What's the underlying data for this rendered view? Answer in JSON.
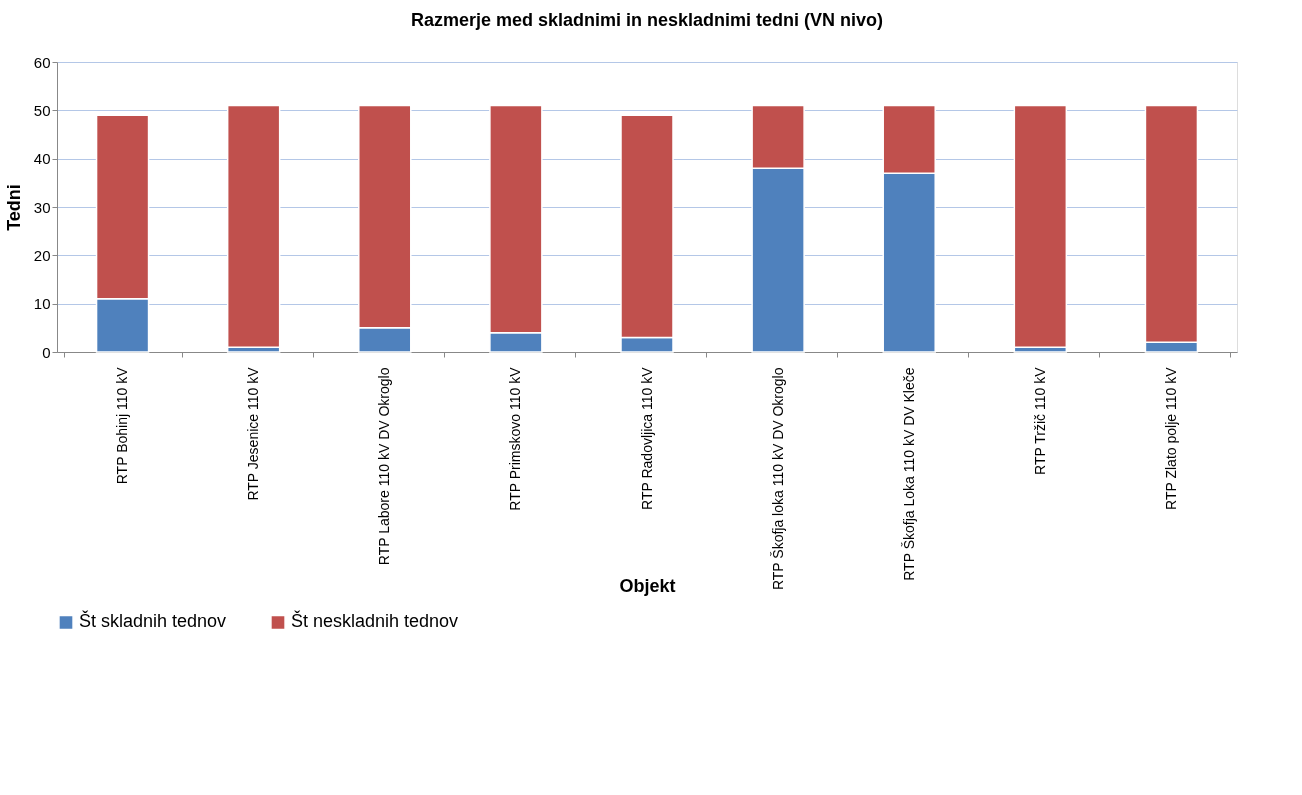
{
  "chart_data": {
    "type": "bar",
    "title": "Razmerje med skladnimi in neskladnimi tedni (VN nivo)",
    "xlabel": "Objekt",
    "ylabel": "Tedni",
    "categories": [
      "RTP Bohinj 110 kV",
      "RTP Jesenice 110 kV",
      "RTP Labore 110 kV DV Okroglo",
      "RTP Primskovo 110 kV",
      "RTP Radovljica 110 kV",
      "RTP Škofja loka 110 kV DV Okroglo",
      "RTP Škofja Loka 110 kV DV Kleče",
      "RTP Tržič 110 kV",
      "RTP Zlato polje 110 kV"
    ],
    "series": [
      {
        "name": "Št skladnih tednov",
        "color": "#4f81bd",
        "values": [
          11,
          1,
          5,
          4,
          3,
          38,
          37,
          1,
          2
        ]
      },
      {
        "name": "Št neskladnih tednov",
        "color": "#c0504d",
        "values": [
          38,
          50,
          46,
          47,
          46,
          13,
          14,
          50,
          49
        ]
      }
    ],
    "stacked": true,
    "ylim": [
      0,
      60
    ],
    "yticks": [
      0,
      10,
      20,
      30,
      40,
      50,
      60
    ],
    "grid": "y",
    "legend": "bottom"
  }
}
